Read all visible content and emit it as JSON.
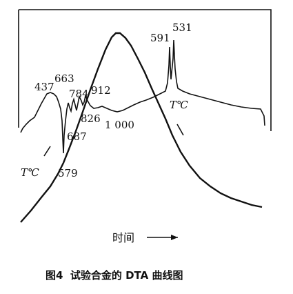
{
  "chart_data": {
    "type": "line",
    "title": "",
    "xlabel": "时间",
    "ylabel": "",
    "x_direction_arrow": "→",
    "grid": false,
    "legend": "none",
    "caption": "图4  试验合金的 DTA 曲线图",
    "series": [
      {
        "role": "dta_curve",
        "peak_labels": [
          "437",
          "663",
          "784",
          "912",
          "826",
          "1 000",
          "687",
          "579",
          "591",
          "531"
        ]
      },
      {
        "role": "temperature_curve",
        "curve_labels": [
          "T℃",
          "T℃"
        ]
      }
    ],
    "colors": {
      "line": "#111111",
      "background": "#ffffff"
    }
  }
}
